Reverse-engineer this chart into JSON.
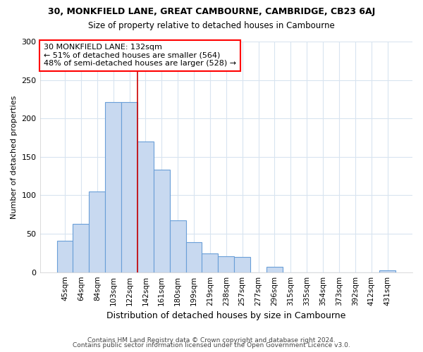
{
  "title1": "30, MONKFIELD LANE, GREAT CAMBOURNE, CAMBRIDGE, CB23 6AJ",
  "title2": "Size of property relative to detached houses in Cambourne",
  "xlabel": "Distribution of detached houses by size in Cambourne",
  "ylabel": "Number of detached properties",
  "categories": [
    "45sqm",
    "64sqm",
    "84sqm",
    "103sqm",
    "122sqm",
    "142sqm",
    "161sqm",
    "180sqm",
    "199sqm",
    "219sqm",
    "238sqm",
    "257sqm",
    "277sqm",
    "296sqm",
    "315sqm",
    "335sqm",
    "354sqm",
    "373sqm",
    "392sqm",
    "412sqm",
    "431sqm"
  ],
  "values": [
    41,
    63,
    105,
    221,
    221,
    170,
    133,
    67,
    39,
    24,
    21,
    20,
    0,
    7,
    0,
    0,
    0,
    0,
    0,
    0,
    2
  ],
  "bar_color": "#c8d9f0",
  "bar_edge_color": "#6a9fd8",
  "annotation_text": "30 MONKFIELD LANE: 132sqm\n← 51% of detached houses are smaller (564)\n48% of semi-detached houses are larger (528) →",
  "vline_x_index": 4.5,
  "ylim": [
    0,
    300
  ],
  "yticks": [
    0,
    50,
    100,
    150,
    200,
    250,
    300
  ],
  "footer1": "Contains HM Land Registry data © Crown copyright and database right 2024.",
  "footer2": "Contains public sector information licensed under the Open Government Licence v3.0.",
  "bg_color": "#ffffff",
  "grid_color": "#d8e4f0",
  "bar_width": 1.0
}
